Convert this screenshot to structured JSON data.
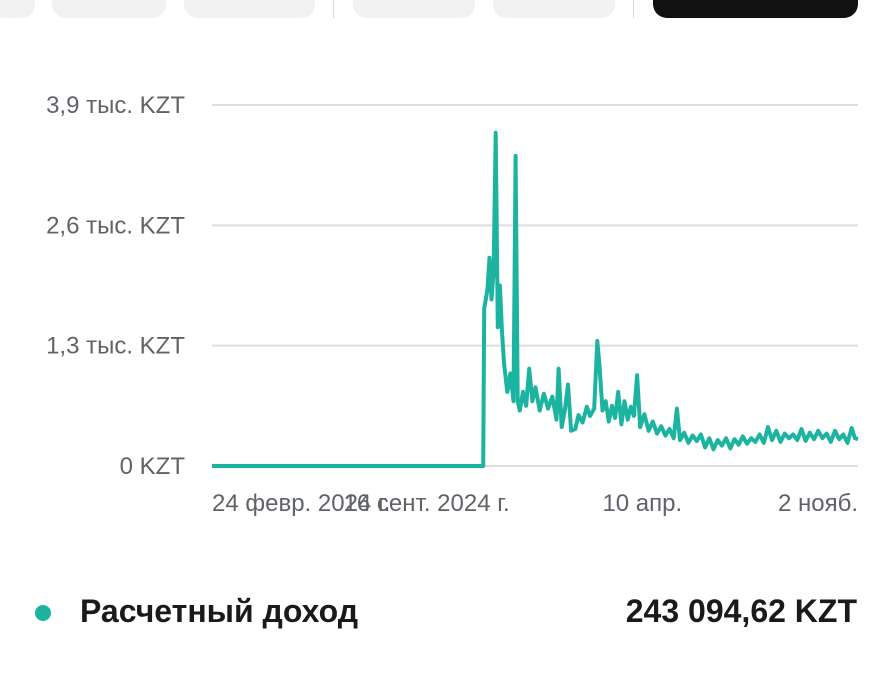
{
  "colors": {
    "accent": "#1cb3a0",
    "grid": "#dedede",
    "tab_active": "#111111",
    "tab": "#f1f1f1"
  },
  "tabs": {
    "count": 6,
    "active_index": 5
  },
  "legend": {
    "label": "Расчетный доход",
    "value": "243 094,62 KZT",
    "dot_color": "#1cb3a0"
  },
  "chart_data": {
    "type": "line",
    "title": "",
    "xlabel": "",
    "ylabel": "",
    "y_tick_labels": [
      "0 KZT",
      "1,3 тыс. KZT",
      "2,6 тыс. KZT",
      "3,9 тыс. KZT"
    ],
    "y_ticks": [
      0,
      1300,
      2600,
      3900
    ],
    "ylim": [
      0,
      3900
    ],
    "x_tick_labels": [
      "24 февр. 2024 г.",
      "16 сент. 2024 г.",
      "10 апр.",
      "2 нояб."
    ],
    "x_ticks": [
      "2024-02-24",
      "2024-09-16",
      "2025-04-10",
      "2025-11-02"
    ],
    "xlim": [
      "2024-02-24",
      "2025-11-02"
    ],
    "grid": true,
    "legend_position": "bottom",
    "series": [
      {
        "name": "Расчетный доход",
        "color": "#1cb3a0",
        "points": [
          [
            "2024-02-24",
            0
          ],
          [
            "2024-11-09",
            0
          ],
          [
            "2024-11-10",
            1700
          ],
          [
            "2024-11-13",
            1900
          ],
          [
            "2024-11-15",
            2250
          ],
          [
            "2024-11-17",
            1800
          ],
          [
            "2024-11-19",
            2100
          ],
          [
            "2024-11-21",
            3600
          ],
          [
            "2024-11-23",
            1500
          ],
          [
            "2024-11-25",
            1950
          ],
          [
            "2024-11-27",
            1450
          ],
          [
            "2024-11-29",
            1100
          ],
          [
            "2024-12-02",
            800
          ],
          [
            "2024-12-05",
            1000
          ],
          [
            "2024-12-08",
            700
          ],
          [
            "2024-12-10",
            3350
          ],
          [
            "2024-12-12",
            700
          ],
          [
            "2024-12-14",
            600
          ],
          [
            "2024-12-17",
            800
          ],
          [
            "2024-12-20",
            650
          ],
          [
            "2024-12-23",
            1050
          ],
          [
            "2024-12-26",
            700
          ],
          [
            "2024-12-29",
            850
          ],
          [
            "2025-01-02",
            600
          ],
          [
            "2025-01-06",
            780
          ],
          [
            "2025-01-10",
            620
          ],
          [
            "2025-01-14",
            750
          ],
          [
            "2025-01-18",
            500
          ],
          [
            "2025-01-20",
            1050
          ],
          [
            "2025-01-23",
            420
          ],
          [
            "2025-01-26",
            600
          ],
          [
            "2025-01-29",
            880
          ],
          [
            "2025-02-01",
            380
          ],
          [
            "2025-02-05",
            400
          ],
          [
            "2025-02-08",
            550
          ],
          [
            "2025-02-12",
            470
          ],
          [
            "2025-02-16",
            640
          ],
          [
            "2025-02-19",
            540
          ],
          [
            "2025-02-23",
            620
          ],
          [
            "2025-02-26",
            1350
          ],
          [
            "2025-02-28",
            1100
          ],
          [
            "2025-03-03",
            600
          ],
          [
            "2025-03-06",
            700
          ],
          [
            "2025-03-09",
            480
          ],
          [
            "2025-03-12",
            650
          ],
          [
            "2025-03-15",
            520
          ],
          [
            "2025-03-18",
            800
          ],
          [
            "2025-03-21",
            450
          ],
          [
            "2025-03-24",
            700
          ],
          [
            "2025-03-27",
            500
          ],
          [
            "2025-03-30",
            640
          ],
          [
            "2025-04-02",
            540
          ],
          [
            "2025-04-05",
            980
          ],
          [
            "2025-04-08",
            420
          ],
          [
            "2025-04-12",
            560
          ],
          [
            "2025-04-16",
            380
          ],
          [
            "2025-04-20",
            480
          ],
          [
            "2025-04-24",
            350
          ],
          [
            "2025-04-28",
            430
          ],
          [
            "2025-05-02",
            330
          ],
          [
            "2025-05-06",
            400
          ],
          [
            "2025-05-10",
            300
          ],
          [
            "2025-05-13",
            620
          ],
          [
            "2025-05-16",
            280
          ],
          [
            "2025-05-20",
            360
          ],
          [
            "2025-05-24",
            250
          ],
          [
            "2025-05-28",
            330
          ],
          [
            "2025-06-01",
            270
          ],
          [
            "2025-06-05",
            340
          ],
          [
            "2025-06-09",
            200
          ],
          [
            "2025-06-13",
            300
          ],
          [
            "2025-06-17",
            180
          ],
          [
            "2025-06-21",
            280
          ],
          [
            "2025-06-25",
            220
          ],
          [
            "2025-06-29",
            300
          ],
          [
            "2025-07-03",
            190
          ],
          [
            "2025-07-07",
            290
          ],
          [
            "2025-07-11",
            230
          ],
          [
            "2025-07-15",
            320
          ],
          [
            "2025-07-19",
            240
          ],
          [
            "2025-07-23",
            300
          ],
          [
            "2025-07-27",
            260
          ],
          [
            "2025-07-31",
            340
          ],
          [
            "2025-08-04",
            250
          ],
          [
            "2025-08-08",
            420
          ],
          [
            "2025-08-12",
            280
          ],
          [
            "2025-08-16",
            380
          ],
          [
            "2025-08-20",
            260
          ],
          [
            "2025-08-24",
            350
          ],
          [
            "2025-08-28",
            300
          ],
          [
            "2025-09-01",
            340
          ],
          [
            "2025-09-05",
            280
          ],
          [
            "2025-09-09",
            400
          ],
          [
            "2025-09-13",
            270
          ],
          [
            "2025-09-17",
            360
          ],
          [
            "2025-09-21",
            290
          ],
          [
            "2025-09-25",
            380
          ],
          [
            "2025-09-29",
            300
          ],
          [
            "2025-10-03",
            350
          ],
          [
            "2025-10-07",
            260
          ],
          [
            "2025-10-11",
            380
          ],
          [
            "2025-10-15",
            290
          ],
          [
            "2025-10-19",
            340
          ],
          [
            "2025-10-23",
            250
          ],
          [
            "2025-10-27",
            410
          ],
          [
            "2025-10-30",
            300
          ],
          [
            "2025-11-02",
            290
          ]
        ]
      }
    ]
  }
}
